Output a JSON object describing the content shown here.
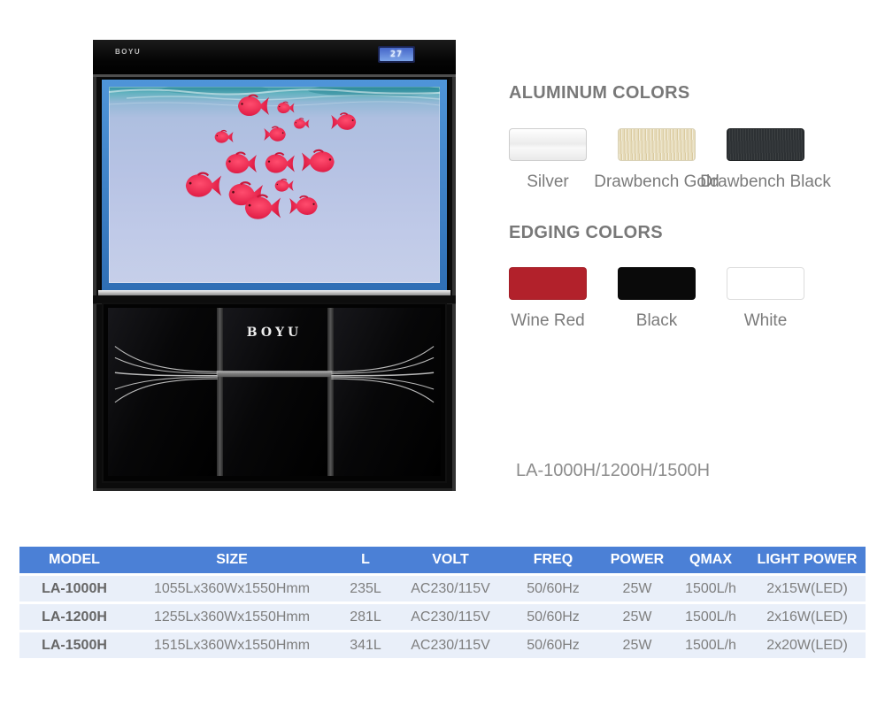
{
  "product": {
    "brand": "BOYU",
    "temperature_display": "27",
    "model_line": "LA-1000H/1200H/1500H"
  },
  "aluminum_colors": {
    "title": "ALUMINUM COLORS",
    "swatches": [
      {
        "label": "Silver",
        "color": "#f7f7f7",
        "finish": "gloss-silver"
      },
      {
        "label": "Drawbench Gold",
        "color": "#e6dbb9",
        "finish": "brushed-gold"
      },
      {
        "label": "Drawbench Black",
        "color": "#2d3134",
        "finish": "brushed-black"
      }
    ]
  },
  "edging_colors": {
    "title": "EDGING COLORS",
    "swatches": [
      {
        "label": "Wine Red",
        "color": "#b2212b",
        "finish": "solid"
      },
      {
        "label": "Black",
        "color": "#0a0a0a",
        "finish": "solid"
      },
      {
        "label": "White",
        "color": "#ffffff",
        "finish": "outlined"
      }
    ]
  },
  "spec_table": {
    "header_bg": "#4b80d6",
    "row_bg": "#e9eff9",
    "headers": [
      "MODEL",
      "SIZE",
      "L",
      "VOLT",
      "FREQ",
      "POWER",
      "QMAX",
      "LIGHT POWER"
    ],
    "rows": [
      [
        "LA-1000H",
        "1055Lx360Wx1550Hmm",
        "235L",
        "AC230/115V",
        "50/60Hz",
        "25W",
        "1500L/h",
        "2x15W(LED)"
      ],
      [
        "LA-1200H",
        "1255Lx360Wx1550Hmm",
        "281L",
        "AC230/115V",
        "50/60Hz",
        "25W",
        "1500L/h",
        "2x16W(LED)"
      ],
      [
        "LA-1500H",
        "1515Lx360Wx1550Hmm",
        "341L",
        "AC230/115V",
        "50/60Hz",
        "25W",
        "1500L/h",
        "2x20W(LED)"
      ]
    ]
  }
}
